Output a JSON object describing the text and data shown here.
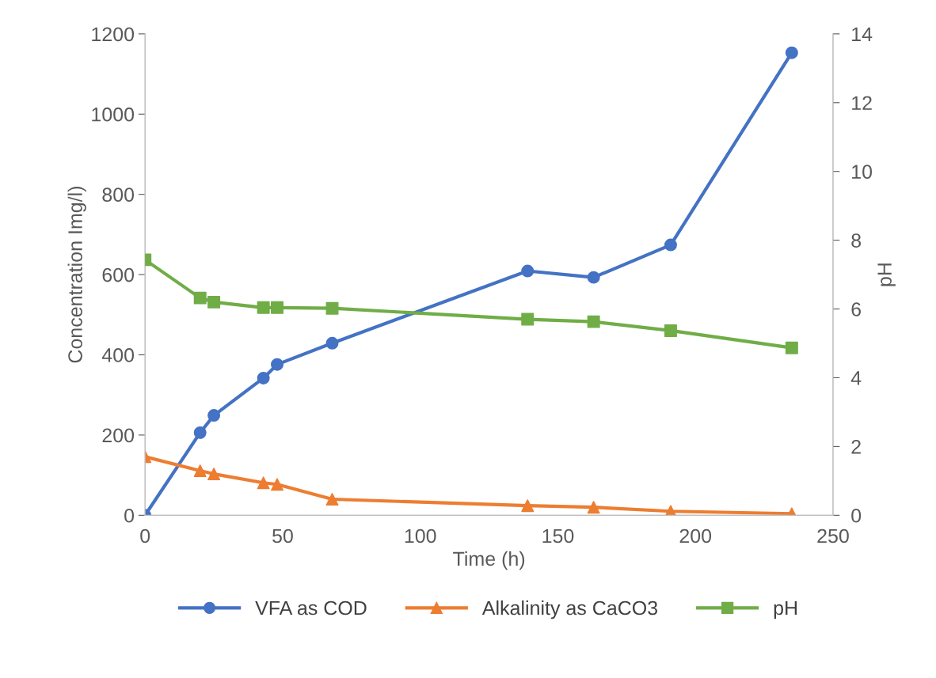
{
  "chart_data": {
    "type": "line",
    "xlabel": "Time (h)",
    "ylabel": "Concentration Img/l)",
    "y2label": "pH",
    "x": [
      0,
      20,
      25,
      43,
      48,
      68,
      139,
      163,
      191,
      235
    ],
    "xlim": [
      0,
      250
    ],
    "xticks": [
      0,
      50,
      100,
      150,
      200,
      250
    ],
    "ylim": [
      0,
      1200
    ],
    "yticks": [
      0,
      200,
      400,
      600,
      800,
      1000,
      1200
    ],
    "y2lim": [
      0,
      14
    ],
    "y2ticks": [
      0,
      2,
      4,
      6,
      8,
      10,
      12,
      14
    ],
    "grid": false,
    "legend": "bottom",
    "line_style": "solid",
    "series": [
      {
        "name": "VFA as COD",
        "color": "#4472c4",
        "marker": "circle",
        "values": [
          0,
          206,
          249,
          342,
          376,
          429,
          609,
          593,
          674,
          1153
        ]
      },
      {
        "name": "Alkalinity as CaCO3",
        "color": "#ed7d31",
        "marker": "triangle",
        "values": [
          146,
          111,
          103,
          81,
          77,
          40,
          24,
          20,
          10,
          4
        ]
      },
      {
        "name": "pH",
        "color": "#70ad47",
        "marker": "square",
        "axis": "y2",
        "values": [
          7.43,
          6.32,
          6.2,
          6.04,
          6.04,
          6.02,
          5.7,
          5.63,
          5.37,
          4.87
        ]
      }
    ]
  }
}
